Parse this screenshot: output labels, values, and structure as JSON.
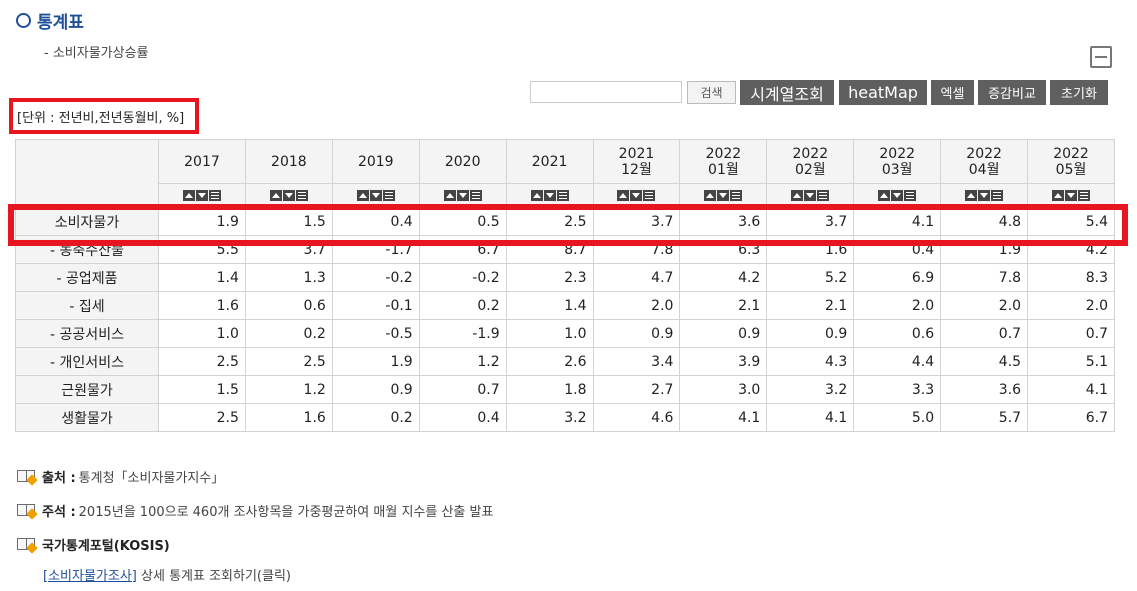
{
  "page": {
    "title": "통계표",
    "subtitle": "- 소비자물가상승률",
    "unit": "[단위 : 전년비,전년동월비, %]"
  },
  "toolbar": {
    "search_placeholder": "",
    "search_button": "검색",
    "timeline_button": "시계열조회",
    "heatmap_button": "heatMap",
    "excel_button": "엑셀",
    "compare_button": "증감비교",
    "reset_button": "초기화"
  },
  "table": {
    "headers": [
      {
        "line1": "2017",
        "line2": ""
      },
      {
        "line1": "2018",
        "line2": ""
      },
      {
        "line1": "2019",
        "line2": ""
      },
      {
        "line1": "2020",
        "line2": ""
      },
      {
        "line1": "2021",
        "line2": ""
      },
      {
        "line1": "2021",
        "line2": "12월"
      },
      {
        "line1": "2022",
        "line2": "01월"
      },
      {
        "line1": "2022",
        "line2": "02월"
      },
      {
        "line1": "2022",
        "line2": "03월"
      },
      {
        "line1": "2022",
        "line2": "04월"
      },
      {
        "line1": "2022",
        "line2": "05월"
      }
    ],
    "rows": [
      {
        "label": "소비자물가",
        "values": [
          "1.9",
          "1.5",
          "0.4",
          "0.5",
          "2.5",
          "3.7",
          "3.6",
          "3.7",
          "4.1",
          "4.8",
          "5.4"
        ]
      },
      {
        "label": "- 농축수산물",
        "values": [
          "5.5",
          "3.7",
          "-1.7",
          "6.7",
          "8.7",
          "7.8",
          "6.3",
          "1.6",
          "0.4",
          "1.9",
          "4.2"
        ]
      },
      {
        "label": "- 공업제품",
        "values": [
          "1.4",
          "1.3",
          "-0.2",
          "-0.2",
          "2.3",
          "4.7",
          "4.2",
          "5.2",
          "6.9",
          "7.8",
          "8.3"
        ]
      },
      {
        "label": "- 집세",
        "values": [
          "1.6",
          "0.6",
          "-0.1",
          "0.2",
          "1.4",
          "2.0",
          "2.1",
          "2.1",
          "2.0",
          "2.0",
          "2.0"
        ]
      },
      {
        "label": "- 공공서비스",
        "values": [
          "1.0",
          "0.2",
          "-0.5",
          "-1.9",
          "1.0",
          "0.9",
          "0.9",
          "0.9",
          "0.6",
          "0.7",
          "0.7"
        ]
      },
      {
        "label": "- 개인서비스",
        "values": [
          "2.5",
          "2.5",
          "1.9",
          "1.2",
          "2.6",
          "3.4",
          "3.9",
          "4.3",
          "4.4",
          "4.5",
          "5.1"
        ]
      },
      {
        "label": "근원물가",
        "values": [
          "1.5",
          "1.2",
          "0.9",
          "0.7",
          "1.8",
          "2.7",
          "3.0",
          "3.2",
          "3.3",
          "3.6",
          "4.1"
        ]
      },
      {
        "label": "생활물가",
        "values": [
          "2.5",
          "1.6",
          "0.2",
          "0.4",
          "3.2",
          "4.6",
          "4.1",
          "4.1",
          "5.0",
          "5.7",
          "6.7"
        ]
      }
    ]
  },
  "notes": {
    "source_label": "출처 :",
    "source_text": "통계청「소비자물가지수」",
    "remark_label": "주석 :",
    "remark_text": "2015년을 100으로 460개 조사항목을 가중평균하여 매월 지수를 산출 발표",
    "kosis_label": "국가통계포털(KOSIS)",
    "kosis_link": "[소비자물가조사]",
    "kosis_link_suffix": "상세 통계표 조회하기(클릭)"
  },
  "colors": {
    "accent": "#1f4f9a",
    "highlight": "#e8141e",
    "button_dark": "#5f5f5f"
  }
}
